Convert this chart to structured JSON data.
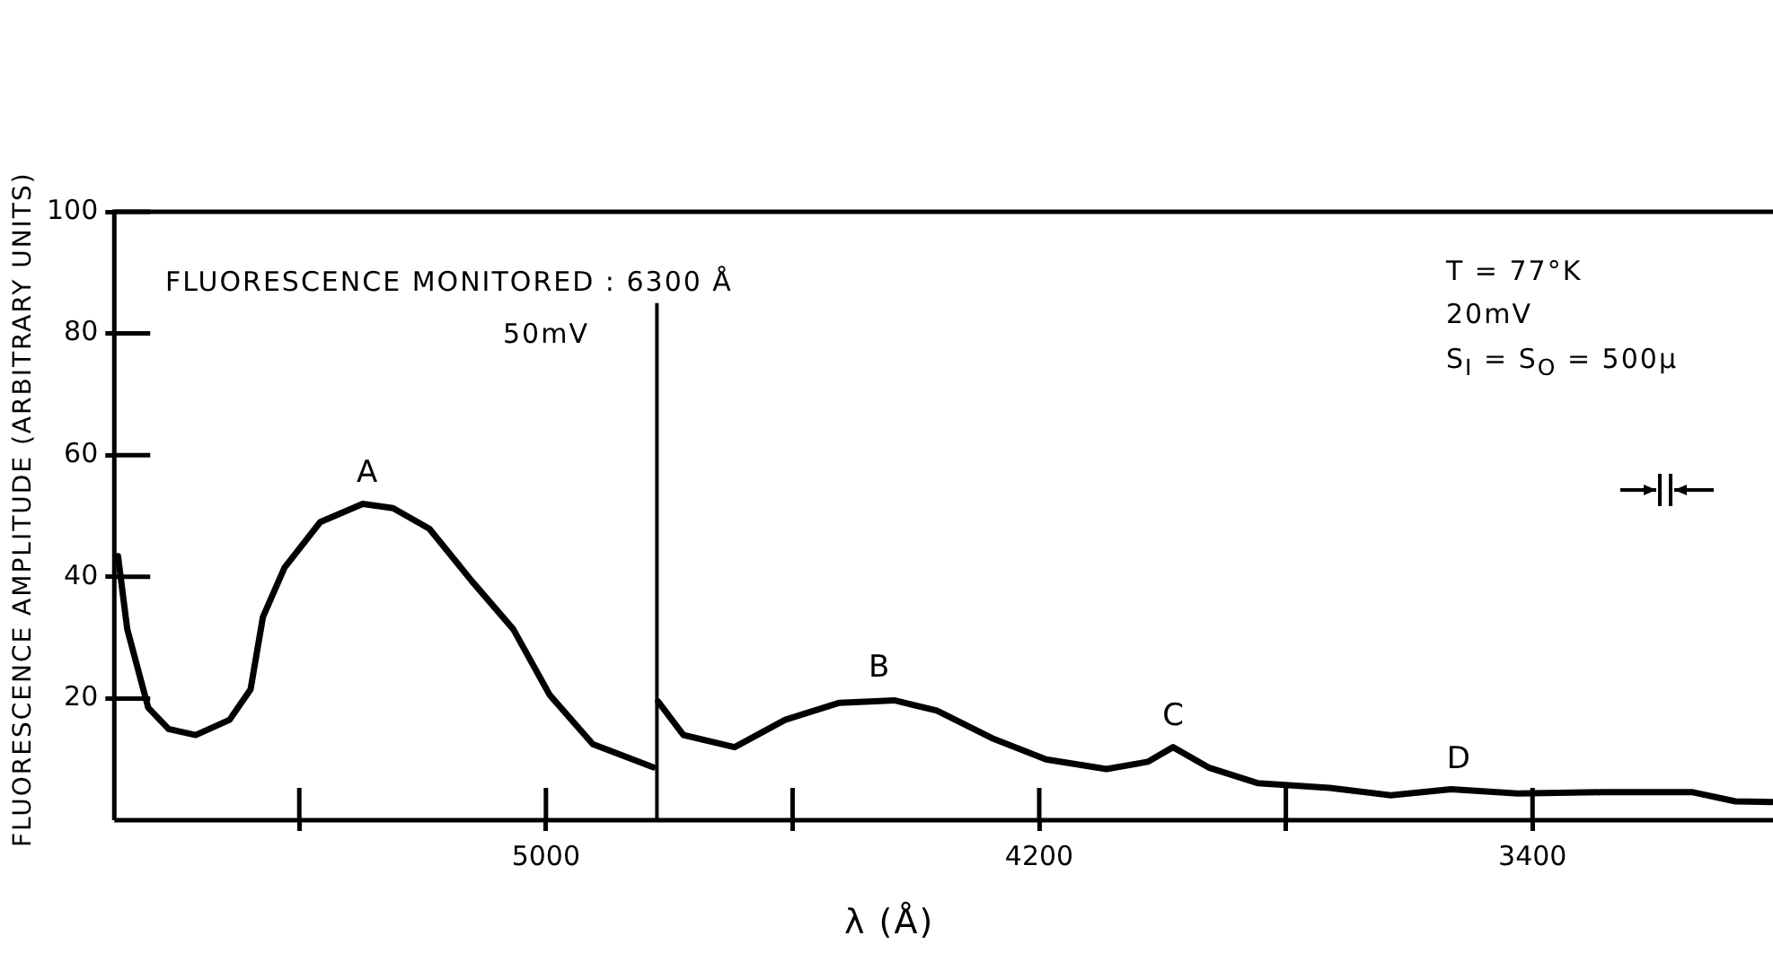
{
  "chart_data": {
    "type": "line",
    "xlabel": "λ (Å)",
    "ylabel": "FLUORESCENCE AMPLITUDE (ARBITRARY UNITS)",
    "xlim": [
      5700,
      3010
    ],
    "ylim": [
      0,
      100
    ],
    "xticks": [
      {
        "value": 5400,
        "label": null
      },
      5000,
      {
        "value": 4600,
        "label": null
      },
      4200,
      {
        "value": 3800,
        "label": null
      },
      3400
    ],
    "yticks": [
      20,
      40,
      60,
      80,
      100
    ],
    "grid": false,
    "legend": false,
    "marker": "none",
    "line_style": "solid",
    "series": [
      {
        "color": "#000000",
        "x": [
          5694,
          5679,
          5645,
          5612,
          5568,
          5513,
          5479,
          5459,
          5424,
          5366,
          5297,
          5248,
          5189,
          5121,
          5053,
          4994,
          4924,
          4826,
          4822,
          4818,
          4777,
          4694,
          4612,
          4524,
          4435,
          4366,
          4277,
          4189,
          4091,
          4024,
          3983,
          3924,
          3846,
          3729,
          3630,
          3532,
          3424,
          3287,
          3140,
          3071,
          3012
        ],
        "values": [
          43.4,
          31.4,
          18.5,
          15.0,
          14.0,
          16.5,
          21.5,
          33.4,
          41.5,
          49.0,
          52.0,
          51.3,
          47.9,
          39.4,
          31.4,
          20.6,
          12.5,
          8.7,
          null,
          19.5,
          14.0,
          12.0,
          16.5,
          19.3,
          19.7,
          18.0,
          13.5,
          10.0,
          8.4,
          9.6,
          12.0,
          8.6,
          6.1,
          5.3,
          4.1,
          5.1,
          4.4,
          4.6,
          4.6,
          3.1,
          3.0
        ]
      }
    ],
    "ref_lines": [
      {
        "axis": "x",
        "value": 4820,
        "color": "#000000"
      }
    ],
    "annotations": [
      "FLUORESCENCE  MONITORED : 6300 Å",
      "50mV",
      "T = 77°K",
      "20mV",
      "S$_{I}$ = S$_{O}$ = 500μ",
      {
        "text": "A",
        "x": 5290,
        "y": 52
      },
      {
        "text": "B",
        "x": 4460,
        "y": 20
      },
      {
        "text": "C",
        "x": 3983,
        "y": 12
      },
      {
        "text": "D",
        "x": 3520,
        "y": 5
      }
    ]
  }
}
